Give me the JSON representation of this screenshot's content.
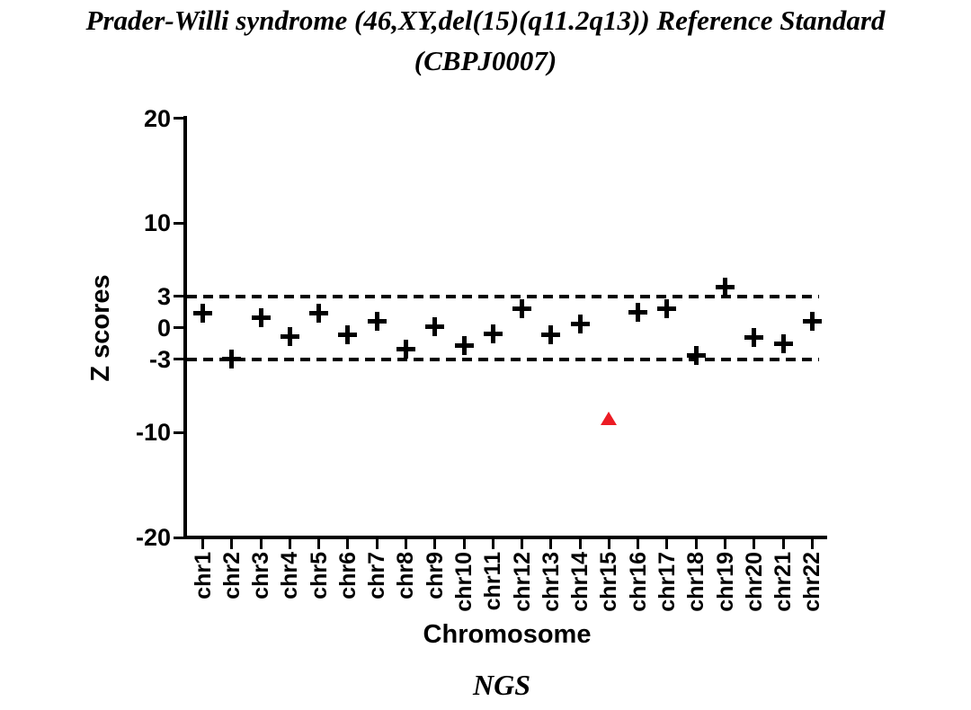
{
  "title": {
    "line1": "Prader-Willi syndrome (46,XY,del(15)(q11.2q13)) Reference Standard",
    "line2": "(CBPJ0007)"
  },
  "chart_data": {
    "type": "scatter",
    "title": "Prader-Willi syndrome (46,XY,del(15)(q11.2q13)) Reference Standard (CBPJ0007)",
    "xlabel": "Chromosome",
    "ylabel": "Z scores",
    "series_label": "NGS",
    "ylim": [
      -20,
      20
    ],
    "y_ticks": [
      20,
      10,
      3,
      0,
      -3,
      -10,
      -20
    ],
    "grid": false,
    "legend": "none",
    "threshold_lines": [
      {
        "y": 3,
        "style": "dashed",
        "color": "#000000"
      },
      {
        "y": -3,
        "style": "dashed",
        "color": "#000000"
      }
    ],
    "categories": [
      "chr1",
      "chr2",
      "chr3",
      "chr4",
      "chr5",
      "chr6",
      "chr7",
      "chr8",
      "chr9",
      "chr10",
      "chr11",
      "chr12",
      "chr13",
      "chr14",
      "chr15",
      "chr16",
      "chr17",
      "chr18",
      "chr19",
      "chr20",
      "chr21",
      "chr22"
    ],
    "points": [
      {
        "category": "chr1",
        "value": 1.4,
        "marker": "plus",
        "color": "#000000"
      },
      {
        "category": "chr2",
        "value": -3.0,
        "marker": "plus",
        "color": "#000000"
      },
      {
        "category": "chr3",
        "value": 1.0,
        "marker": "plus",
        "color": "#000000"
      },
      {
        "category": "chr4",
        "value": -0.8,
        "marker": "plus",
        "color": "#000000"
      },
      {
        "category": "chr5",
        "value": 1.4,
        "marker": "plus",
        "color": "#000000"
      },
      {
        "category": "chr6",
        "value": -0.7,
        "marker": "plus",
        "color": "#000000"
      },
      {
        "category": "chr7",
        "value": 0.6,
        "marker": "plus",
        "color": "#000000"
      },
      {
        "category": "chr8",
        "value": -2.0,
        "marker": "plus",
        "color": "#000000"
      },
      {
        "category": "chr9",
        "value": 0.1,
        "marker": "plus",
        "color": "#000000"
      },
      {
        "category": "chr10",
        "value": -1.7,
        "marker": "plus",
        "color": "#000000"
      },
      {
        "category": "chr11",
        "value": -0.6,
        "marker": "plus",
        "color": "#000000"
      },
      {
        "category": "chr12",
        "value": 1.8,
        "marker": "plus",
        "color": "#000000"
      },
      {
        "category": "chr13",
        "value": -0.7,
        "marker": "plus",
        "color": "#000000"
      },
      {
        "category": "chr14",
        "value": 0.4,
        "marker": "plus",
        "color": "#000000"
      },
      {
        "category": "chr15",
        "value": -8.7,
        "marker": "triangle-up",
        "color": "#EC1C24"
      },
      {
        "category": "chr16",
        "value": 1.5,
        "marker": "plus",
        "color": "#000000"
      },
      {
        "category": "chr17",
        "value": 1.8,
        "marker": "plus",
        "color": "#000000"
      },
      {
        "category": "chr18",
        "value": -2.6,
        "marker": "plus",
        "color": "#000000"
      },
      {
        "category": "chr19",
        "value": 3.9,
        "marker": "plus",
        "color": "#000000"
      },
      {
        "category": "chr20",
        "value": -0.9,
        "marker": "plus",
        "color": "#000000"
      },
      {
        "category": "chr21",
        "value": -1.5,
        "marker": "plus",
        "color": "#000000"
      },
      {
        "category": "chr22",
        "value": 0.6,
        "marker": "plus",
        "color": "#000000"
      }
    ]
  },
  "colors": {
    "axis": "#000000",
    "marker": "#000000",
    "outlier": "#EC1C24",
    "background": "#FFFFFF"
  }
}
